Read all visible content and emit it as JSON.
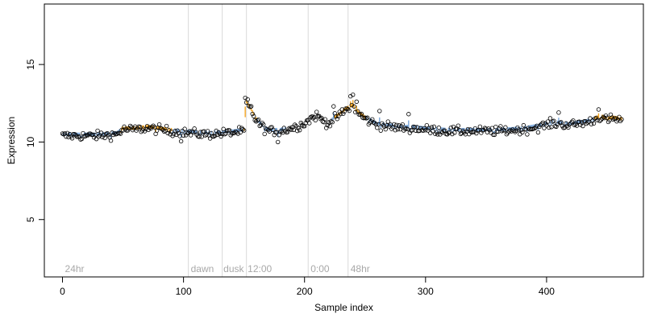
{
  "chart_data": {
    "type": "scatter",
    "title": "",
    "xlabel": "Sample index",
    "ylabel": "Expression",
    "xlim": [
      -15,
      480
    ],
    "ylim": [
      1.3,
      18.9
    ],
    "xticks": [
      0,
      100,
      200,
      300,
      400
    ],
    "yticks": [
      5,
      10,
      15
    ],
    "grid": false,
    "legend": "none",
    "colors": {
      "points": "#000000",
      "bar_blue": "#7aa6d9",
      "bar_orange": "#f5a623",
      "bar_gray": "#a0a0a0",
      "vlines": "#d9d9d9",
      "annotation": "#a8a8a8"
    },
    "vlines": [
      104,
      132,
      152,
      203,
      236
    ],
    "annotations": [
      {
        "x": 2,
        "text": "24hr"
      },
      {
        "x": 106,
        "text": "dawn"
      },
      {
        "x": 133,
        "text": "dusk"
      },
      {
        "x": 153,
        "text": "12:00"
      },
      {
        "x": 205,
        "text": "0:00"
      },
      {
        "x": 238,
        "text": "48hr"
      }
    ],
    "trend": [
      [
        0,
        10.4
      ],
      [
        30,
        10.4
      ],
      [
        45,
        10.5
      ],
      [
        50,
        10.8
      ],
      [
        60,
        10.8
      ],
      [
        70,
        10.9
      ],
      [
        80,
        10.8
      ],
      [
        100,
        10.6
      ],
      [
        120,
        10.5
      ],
      [
        140,
        10.6
      ],
      [
        150,
        10.7
      ],
      [
        152,
        12.5
      ],
      [
        156,
        12.0
      ],
      [
        160,
        11.4
      ],
      [
        165,
        11.0
      ],
      [
        170,
        10.7
      ],
      [
        180,
        10.7
      ],
      [
        190,
        10.9
      ],
      [
        200,
        11.2
      ],
      [
        205,
        11.5
      ],
      [
        210,
        11.7
      ],
      [
        215,
        11.4
      ],
      [
        220,
        11.2
      ],
      [
        225,
        11.5
      ],
      [
        230,
        11.8
      ],
      [
        235,
        12.1
      ],
      [
        240,
        12.3
      ],
      [
        245,
        11.8
      ],
      [
        250,
        11.5
      ],
      [
        260,
        11.1
      ],
      [
        270,
        11.0
      ],
      [
        280,
        10.9
      ],
      [
        290,
        10.9
      ],
      [
        300,
        10.8
      ],
      [
        320,
        10.7
      ],
      [
        340,
        10.7
      ],
      [
        360,
        10.7
      ],
      [
        380,
        10.8
      ],
      [
        395,
        11.0
      ],
      [
        405,
        11.2
      ],
      [
        420,
        11.1
      ],
      [
        435,
        11.3
      ],
      [
        445,
        11.6
      ],
      [
        450,
        11.4
      ],
      [
        455,
        11.5
      ],
      [
        462,
        11.4
      ]
    ],
    "n_points": 463,
    "noise_sd": 0.22,
    "outliers": [
      {
        "x": 151,
        "y": 12.85
      },
      {
        "x": 153,
        "y": 12.75
      },
      {
        "x": 156,
        "y": 12.3
      },
      {
        "x": 224,
        "y": 12.3
      },
      {
        "x": 238,
        "y": 12.95
      },
      {
        "x": 240,
        "y": 13.05
      },
      {
        "x": 243,
        "y": 12.6
      },
      {
        "x": 262,
        "y": 12.0
      },
      {
        "x": 98,
        "y": 10.05
      },
      {
        "x": 178,
        "y": 10.0
      },
      {
        "x": 286,
        "y": 11.8
      },
      {
        "x": 410,
        "y": 11.9
      },
      {
        "x": 443,
        "y": 12.1
      }
    ]
  }
}
